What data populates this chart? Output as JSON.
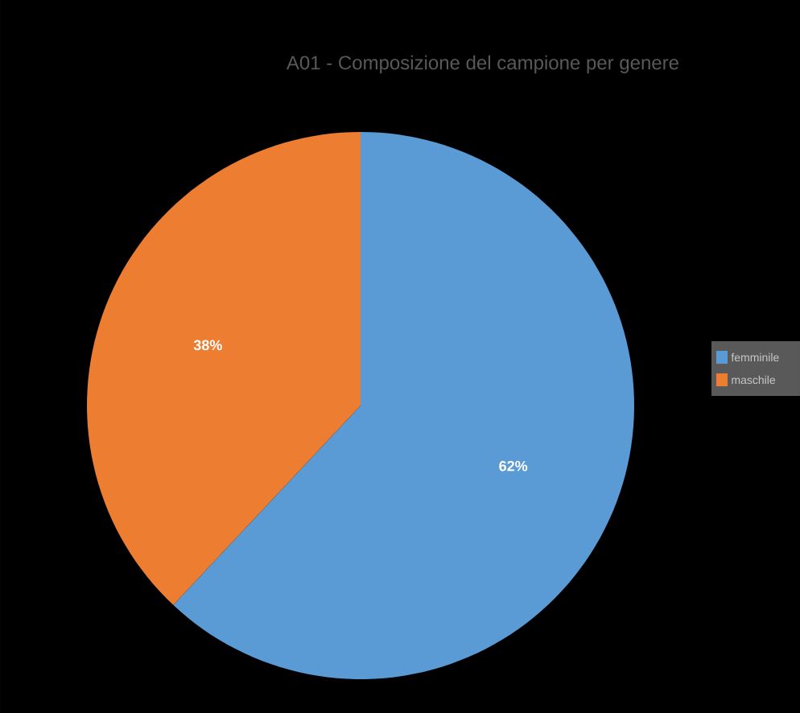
{
  "chart_data": {
    "type": "pie",
    "title": "A01 - Composizione del campione per genere",
    "categories": [
      "femminile",
      "maschile"
    ],
    "values": [
      62,
      38
    ],
    "value_labels": [
      "62%",
      "38%"
    ],
    "colors": [
      "#5b9bd5",
      "#ed7d31"
    ],
    "legend": "right"
  }
}
